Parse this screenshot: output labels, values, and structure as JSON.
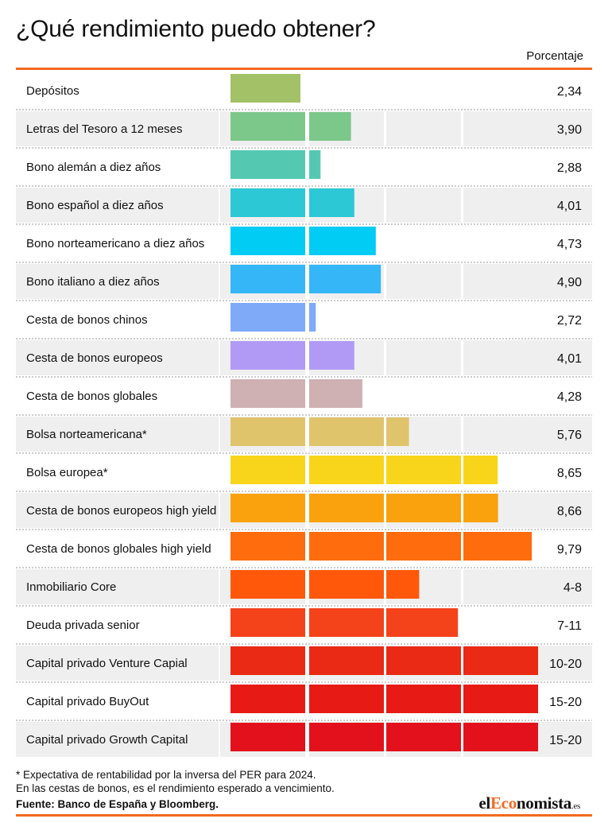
{
  "title": "¿Qué rendimiento puedo obtener?",
  "column_header": "Porcentaje",
  "footnotes": [
    "* Expectativa de rentabilidad por la inversa del PER para 2024.",
    "En las cestas de bonos, es el rendimiento esperado a vencimiento."
  ],
  "source": "Fuente: Banco de España y Bloomberg.",
  "logo": {
    "prefix": "el",
    "accent": "Eco",
    "rest": "nomista",
    "tld": ".es"
  },
  "colors": {
    "accent_rule": "#f26a21",
    "row_shade": "#efefef",
    "separator": "#9a9a9a"
  },
  "chart_data": {
    "type": "bar",
    "orientation": "horizontal",
    "unit": "%",
    "segment_max": [
      2.5,
      5,
      7.5,
      10
    ],
    "categories": [
      "Depósitos",
      "Letras del Tesoro a 12 meses",
      "Bono alemán a diez años",
      "Bono español a diez años",
      "Bono norteamericano a diez años",
      "Bono italiano a diez años",
      "Cesta de bonos chinos",
      "Cesta de bonos europeos",
      "Cesta de bonos globales",
      "Bolsa norteamericana*",
      "Bolsa europea*",
      "Cesta de bonos europeos high yield",
      "Cesta de bonos globales high yield",
      "Inmobiliario Core",
      "Deuda privada senior",
      "Capital privado Venture Capial",
      "Capital privado BuyOut",
      "Capital privado Growth Capital"
    ],
    "labels": [
      "2,34",
      "3,90",
      "2,88",
      "4,01",
      "4,73",
      "4,90",
      "2,72",
      "4,01",
      "4,28",
      "5,76",
      "8,65",
      "8,66",
      "9,79",
      "4-8",
      "7-11",
      "10-20",
      "15-20",
      "15-20"
    ],
    "values": [
      2.34,
      3.9,
      2.88,
      4.01,
      4.73,
      4.9,
      2.72,
      4.01,
      4.28,
      5.76,
      8.65,
      8.66,
      9.79,
      6.1,
      7.4,
      10,
      10,
      10
    ],
    "colors": [
      "#a3c166",
      "#7cc78a",
      "#55c8b2",
      "#2cc8d6",
      "#00ccf4",
      "#35b6f6",
      "#7eaaf8",
      "#b19af6",
      "#cfb0b3",
      "#e0c46c",
      "#f8d51a",
      "#f9a20e",
      "#fe6c0e",
      "#ff580a",
      "#f4421a",
      "#ea2a14",
      "#e81a16",
      "#e3111b"
    ]
  }
}
